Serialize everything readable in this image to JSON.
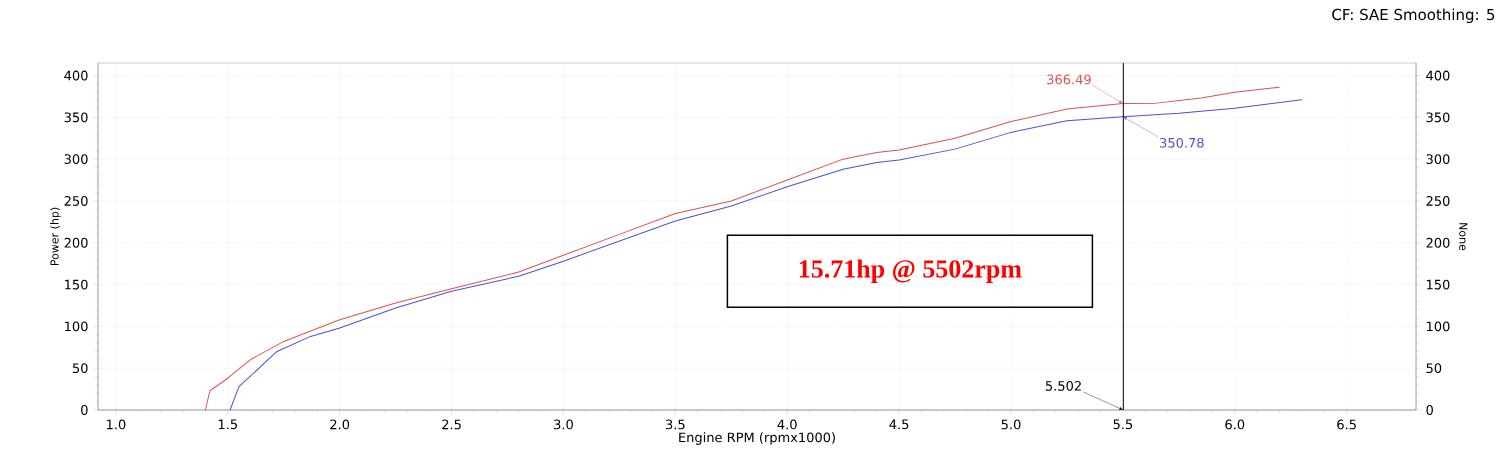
{
  "chart_data": {
    "type": "line",
    "subtitle": "CF: SAE Smoothing: 5",
    "xlabel": "Engine RPM (rpmx1000)",
    "ylabel": "Power (hp)",
    "y2label": "None",
    "xlim": [
      0.92,
      6.81
    ],
    "xticks": [
      {
        "value": 1,
        "label": "1.0"
      },
      {
        "value": 1.5,
        "label": "1.5"
      },
      {
        "value": 2,
        "label": "2.0"
      },
      {
        "value": 2.5,
        "label": "2.5"
      },
      {
        "value": 3,
        "label": "3.0"
      },
      {
        "value": 3.5,
        "label": "3.5"
      },
      {
        "value": 4,
        "label": "4.0"
      },
      {
        "value": 4.5,
        "label": "4.5"
      },
      {
        "value": 5,
        "label": "5.0"
      },
      {
        "value": 5.5,
        "label": "5.5"
      },
      {
        "value": 6,
        "label": "6.0"
      },
      {
        "value": 6.5,
        "label": "6.5"
      }
    ],
    "ylim": [
      0,
      415
    ],
    "yticks": [
      0,
      50,
      100,
      150,
      200,
      250,
      300,
      350,
      400
    ],
    "y2lim": [
      0,
      415
    ],
    "y2ticks": [
      0,
      50,
      100,
      150,
      200,
      250,
      300,
      350,
      400
    ],
    "grid": true,
    "series": [
      {
        "color": "#e05050",
        "x": [
          1.4,
          1.42,
          1.5,
          1.6,
          1.75,
          2.0,
          2.25,
          2.5,
          2.8,
          3.0,
          3.25,
          3.5,
          3.75,
          4.0,
          4.25,
          4.4,
          4.5,
          4.75,
          5.0,
          5.25,
          5.5,
          5.65,
          5.85,
          6.0,
          6.2
        ],
        "values": [
          0,
          23,
          38,
          60,
          82,
          108,
          128,
          145,
          165,
          185,
          210,
          235,
          250,
          275,
          300,
          308,
          311,
          325,
          345,
          360,
          366.49,
          367,
          373,
          380,
          386
        ]
      },
      {
        "color": "#5050d0",
        "x": [
          1.51,
          1.55,
          1.72,
          1.87,
          2.0,
          2.25,
          2.5,
          2.8,
          3.0,
          3.25,
          3.5,
          3.75,
          4.0,
          4.25,
          4.4,
          4.5,
          4.75,
          5.0,
          5.25,
          5.5,
          5.75,
          6.0,
          6.3
        ],
        "values": [
          0,
          28,
          70,
          88,
          98,
          122,
          142,
          160,
          178,
          202,
          226,
          244,
          267,
          288,
          296,
          299,
          312,
          332,
          346,
          350.78,
          355,
          361,
          371
        ]
      }
    ],
    "ref_lines": [
      {
        "axis": "x",
        "value": 5.502,
        "label": "5.502",
        "color": "#000000"
      }
    ],
    "annotations": [
      {
        "text": "366.49",
        "x": 5.5,
        "y": 366.49
      },
      {
        "text": "350.78",
        "x": 5.5,
        "y": 350.78
      },
      "15.71hp @ 5502rpm"
    ]
  }
}
